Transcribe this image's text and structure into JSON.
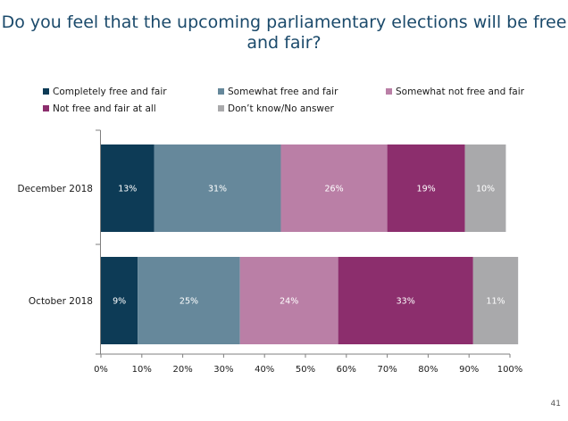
{
  "title": "Do you feel that the upcoming parliamentary elections will be free and fair?",
  "page_number": "41",
  "chart_data": {
    "type": "bar",
    "orientation": "horizontal",
    "stacked": true,
    "categories": [
      "December 2018",
      "October 2018"
    ],
    "series": [
      {
        "name": "Completely free and fair",
        "color": "#0d3b56",
        "values": [
          13,
          9
        ],
        "labels": [
          "13%",
          "9%"
        ]
      },
      {
        "name": "Somewhat free and fair",
        "color": "#66889b",
        "values": [
          31,
          25
        ],
        "labels": [
          "31%",
          "25%"
        ]
      },
      {
        "name": "Somewhat not free and fair",
        "color": "#ba7fa6",
        "values": [
          26,
          24
        ],
        "labels": [
          "26%",
          "24%"
        ]
      },
      {
        "name": "Not free and fair at all",
        "color": "#8c2e6d",
        "values": [
          19,
          33
        ],
        "labels": [
          "19%",
          "33%"
        ]
      },
      {
        "name": "Don’t know/No answer",
        "color": "#a9a9ab",
        "values": [
          10,
          11
        ],
        "labels": [
          "10%",
          "11%"
        ]
      }
    ],
    "xlim": [
      0,
      100
    ],
    "xticks": [
      "0%",
      "10%",
      "20%",
      "30%",
      "40%",
      "50%",
      "60%",
      "70%",
      "80%",
      "90%",
      "100%"
    ],
    "legend_position": "top",
    "grid": false
  }
}
